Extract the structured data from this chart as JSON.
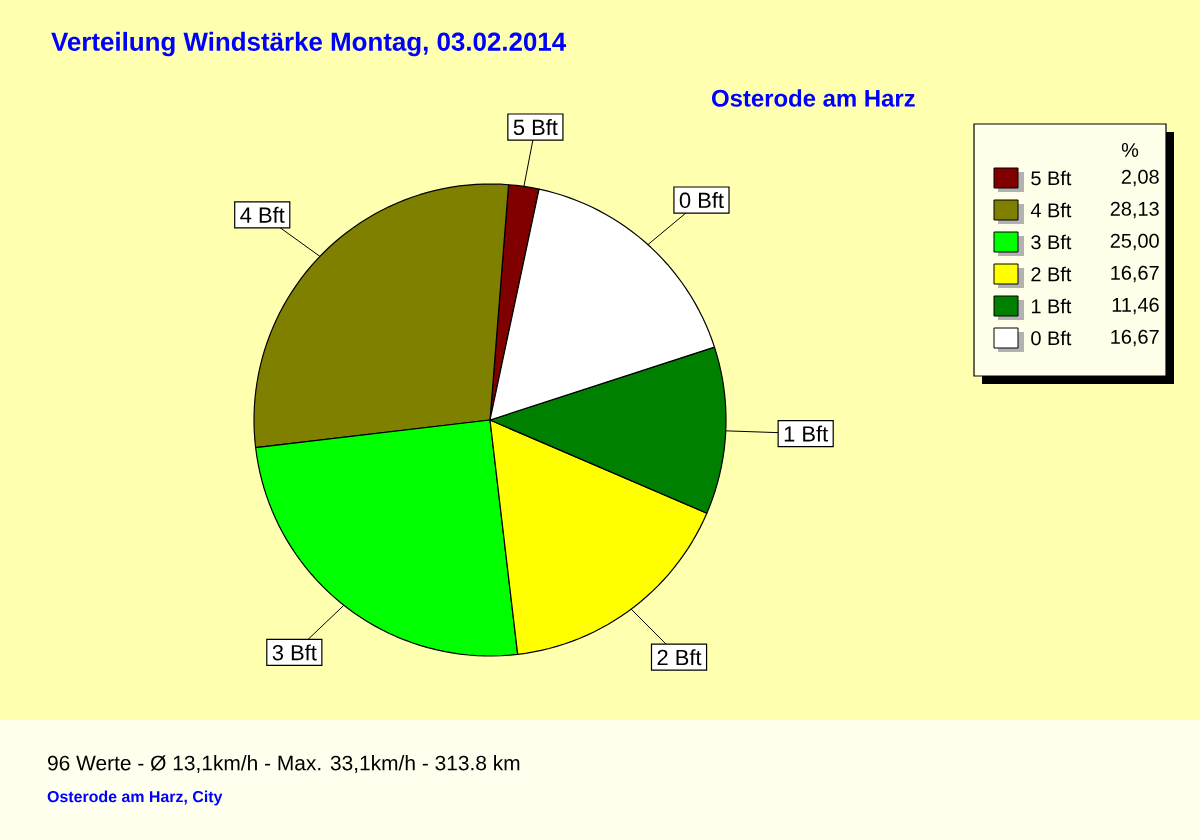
{
  "chart_data": {
    "type": "pie",
    "title": "Verteilung Windstärke  Montag, 03.02.2014",
    "subtitle": "Osterode am Harz",
    "categories": [
      "5 Bft",
      "4 Bft",
      "3 Bft",
      "2 Bft",
      "1 Bft",
      "0 Bft"
    ],
    "values": [
      2.08,
      28.13,
      25.0,
      16.67,
      11.46,
      16.67
    ],
    "value_labels": [
      "2,08",
      "28,13",
      "25,00",
      "16,67",
      "11,46",
      "16,67"
    ],
    "colors": [
      "#800000",
      "#808000",
      "#00ff00",
      "#ffff00",
      "#008000",
      "#ffffff"
    ],
    "legend": "top right",
    "legend_title": "%",
    "annotations": [
      "96 Werte   -   Ø 13,1km/h  -  Max. 33,1km/h   -   313.8 km",
      "Osterode am Harz, City"
    ]
  }
}
